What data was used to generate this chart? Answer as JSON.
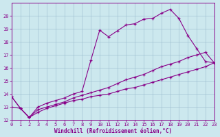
{
  "xlabel": "Windchill (Refroidissement éolien,°C)",
  "xlim": [
    0,
    23
  ],
  "ylim": [
    12,
    21
  ],
  "yticks": [
    12,
    13,
    14,
    15,
    16,
    17,
    18,
    19,
    20
  ],
  "xticks": [
    0,
    1,
    2,
    3,
    4,
    5,
    6,
    7,
    8,
    9,
    10,
    11,
    12,
    13,
    14,
    15,
    16,
    17,
    18,
    19,
    20,
    21,
    22,
    23
  ],
  "bg_color": "#cce8ee",
  "line_color": "#880088",
  "grid_color": "#99bbcc",
  "line1_x": [
    0,
    1,
    2,
    3,
    4,
    5,
    6,
    7,
    8,
    9,
    10,
    11,
    12,
    13,
    14,
    15,
    16,
    17,
    18,
    19,
    20,
    21,
    22,
    23
  ],
  "line1_y": [
    13.8,
    12.9,
    12.2,
    13.0,
    13.3,
    13.5,
    13.7,
    14.0,
    14.2,
    16.6,
    18.9,
    18.4,
    18.85,
    19.3,
    19.4,
    19.75,
    19.8,
    20.2,
    20.5,
    19.8,
    18.5,
    17.5,
    16.5,
    16.4
  ],
  "line2_x": [
    0,
    1,
    2,
    3,
    4,
    5,
    6,
    7,
    8,
    9,
    10,
    11,
    12,
    13,
    14,
    15,
    16,
    17,
    18,
    19,
    20,
    21,
    22,
    23
  ],
  "line2_y": [
    13.8,
    12.9,
    12.2,
    12.8,
    13.0,
    13.2,
    13.4,
    13.7,
    13.9,
    14.1,
    14.3,
    14.5,
    14.8,
    15.1,
    15.3,
    15.5,
    15.8,
    16.1,
    16.3,
    16.5,
    16.8,
    17.0,
    17.2,
    16.4
  ],
  "line3_x": [
    0,
    1,
    2,
    3,
    4,
    5,
    6,
    7,
    8,
    9,
    10,
    11,
    12,
    13,
    14,
    15,
    16,
    17,
    18,
    19,
    20,
    21,
    22,
    23
  ],
  "line3_y": [
    13.0,
    12.9,
    12.2,
    12.6,
    12.9,
    13.1,
    13.3,
    13.5,
    13.6,
    13.8,
    13.9,
    14.0,
    14.2,
    14.4,
    14.5,
    14.7,
    14.9,
    15.1,
    15.3,
    15.5,
    15.7,
    15.9,
    16.1,
    16.4
  ]
}
